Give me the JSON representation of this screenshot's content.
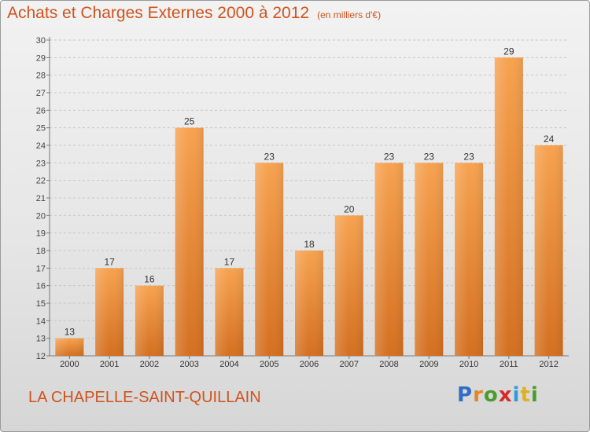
{
  "header": {
    "title": "Achats et Charges Externes 2000 à 2012",
    "unit": "(en milliers d'€)"
  },
  "footer": {
    "commune": "LA CHAPELLE-SAINT-QUILLAIN",
    "logo_letters": [
      "P",
      "r",
      "o",
      "x",
      "i",
      "t",
      "i"
    ],
    "logo_colors": [
      "#2f6ec4",
      "#e2862b",
      "#4a9c2e",
      "#d62a2a",
      "#2a9fd6",
      "#e0b020",
      "#4a9c2e"
    ]
  },
  "chart_data": {
    "type": "bar",
    "categories": [
      "2000",
      "2001",
      "2002",
      "2003",
      "2004",
      "2005",
      "2006",
      "2007",
      "2008",
      "2009",
      "2010",
      "2011",
      "2012"
    ],
    "values": [
      13,
      17,
      16,
      25,
      17,
      23,
      18,
      20,
      23,
      23,
      23,
      29,
      24
    ],
    "ylim": [
      12,
      30
    ],
    "yticks": [
      12,
      13,
      14,
      15,
      16,
      17,
      18,
      19,
      20,
      21,
      22,
      23,
      24,
      25,
      26,
      27,
      28,
      29,
      30
    ],
    "grid": true,
    "bar_color": "#f29b45"
  }
}
